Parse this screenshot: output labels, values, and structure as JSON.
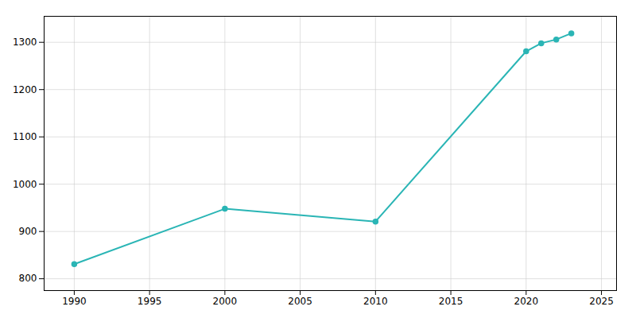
{
  "chart_data": {
    "type": "line",
    "x": [
      1990,
      2000,
      2010,
      2020,
      2021,
      2022,
      2023
    ],
    "values": [
      831,
      948,
      921,
      1281,
      1298,
      1306,
      1319
    ],
    "color": "#2ab5b5",
    "marker": "circle",
    "xlim": [
      1988,
      2026
    ],
    "ylim": [
      775,
      1355
    ],
    "xticks": [
      1990,
      1995,
      2000,
      2005,
      2010,
      2015,
      2020,
      2025
    ],
    "yticks": [
      800,
      900,
      1000,
      1100,
      1200,
      1300
    ],
    "grid": true
  }
}
